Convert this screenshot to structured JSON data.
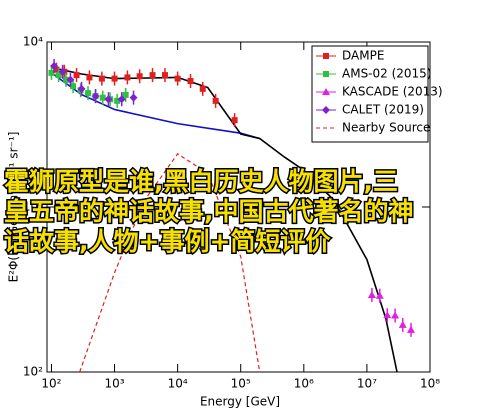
{
  "chart_data": {
    "type": "line",
    "x_label": "Energy [GeV]",
    "y_label": "E²Φ(E) [GeV m⁻² s⁻¹ sr⁻¹]",
    "xlog": true,
    "ylog": true,
    "xlim": [
      85,
      100000000
    ],
    "ylim": [
      100,
      10000
    ],
    "xticks": [
      {
        "value": 100,
        "label": "10²"
      },
      {
        "value": 1000,
        "label": "10³"
      },
      {
        "value": 10000,
        "label": "10⁴"
      },
      {
        "value": 100000,
        "label": "10⁵"
      },
      {
        "value": 1000000,
        "label": "10⁶"
      },
      {
        "value": 10000000,
        "label": "10⁷"
      },
      {
        "value": 100000000,
        "label": "10⁸"
      }
    ],
    "yticks": [
      {
        "value": 100,
        "label": "10²"
      },
      {
        "value": 1000,
        "label": "10³"
      },
      {
        "value": 10000,
        "label": "10⁴"
      }
    ],
    "legend": "upper right",
    "series": [
      {
        "style": "line",
        "color": "#1010cc",
        "x": [
          100,
          300,
          1000,
          10000,
          100000,
          200000
        ],
        "values": [
          6500,
          4800,
          3900,
          3200,
          2800,
          2600
        ]
      },
      {
        "style": "line",
        "color": "#000000",
        "x": [
          100,
          300,
          1000,
          10000,
          30000,
          100000,
          200000,
          500000,
          1000000,
          3000000,
          10000000,
          20000000,
          30000000
        ],
        "values": [
          7000,
          6400,
          6000,
          6100,
          5300,
          2770,
          2600,
          2000,
          1670,
          1100,
          480,
          210,
          100
        ]
      },
      {
        "name": "DAMPE",
        "style": "points",
        "marker": "square",
        "color": "#e02020",
        "x": [
          120,
          160,
          250,
          400,
          630,
          1000,
          1600,
          2500,
          4000,
          6300,
          10000,
          16000,
          25000,
          40000,
          80000
        ],
        "values": [
          6800,
          6600,
          6300,
          6100,
          6000,
          6000,
          6100,
          6200,
          6300,
          6300,
          6000,
          5800,
          5200,
          4400,
          3360
        ]
      },
      {
        "name": "AMS-02 (2015)",
        "style": "points",
        "marker": "square",
        "color": "#30c040",
        "x": [
          100,
          130,
          170,
          220,
          290,
          380,
          500,
          650,
          850,
          1100,
          1500
        ],
        "values": [
          6500,
          6300,
          5900,
          5400,
          5100,
          4900,
          4700,
          4600,
          4500,
          4400,
          4780
        ]
      },
      {
        "name": "KASCADE (2013)",
        "style": "points",
        "marker": "triangle",
        "color": "#e020e0",
        "x": [
          12000000,
          16000000,
          21000000,
          28000000,
          37000000,
          50000000
        ],
        "values": [
          293,
          290,
          221,
          220,
          193,
          180
        ]
      },
      {
        "name": "CALET (2019)",
        "style": "points",
        "marker": "star",
        "color": "#8020d0",
        "x": [
          110,
          150,
          200,
          300,
          500,
          800,
          1300,
          2000
        ],
        "values": [
          7160,
          6600,
          5900,
          5200,
          4700,
          4500,
          4500,
          4600
        ]
      },
      {
        "name": "Nearby Source",
        "style": "dashed",
        "color": "#e02020",
        "x": [
          280,
          1000,
          3000,
          10000,
          30000,
          100000,
          200000
        ],
        "values": [
          100,
          400,
          1100,
          2100,
          1600,
          500,
          100
        ]
      }
    ]
  },
  "overlay_text": [
    "霍狮原型是谁,黑白历史人物图片,三",
    "皇五帝的神话故事,中国古代著名的神",
    "话故事,人物+事例+简短评价"
  ]
}
